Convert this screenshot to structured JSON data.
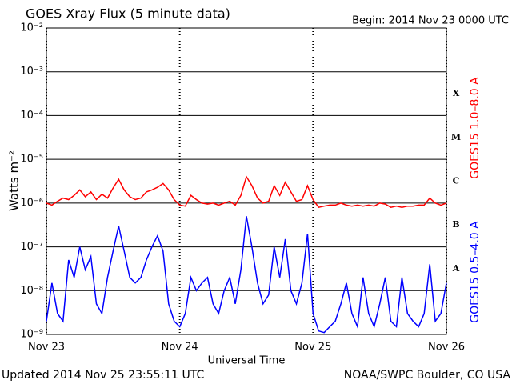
{
  "chart_data": {
    "type": "line",
    "title": "GOES Xray Flux (5 minute data)",
    "subtitle": "Begin:  2014 Nov 23 0000 UTC",
    "y_label": "Watts m⁻²",
    "x_label": "Universal Time",
    "footer_left": "Updated 2014 Nov 25 23:55:11 UTC",
    "footer_right": "NOAA/SWPC Boulder, CO USA",
    "flare_classes": [
      "X",
      "M",
      "C",
      "B",
      "A"
    ],
    "log_y": true,
    "grid": true,
    "xlim": [
      0,
      72
    ],
    "xticks": [
      {
        "value": 0,
        "label": "Nov 23"
      },
      {
        "value": 24,
        "label": "Nov 24"
      },
      {
        "value": 48,
        "label": "Nov 25"
      },
      {
        "value": 72,
        "label": "Nov 26"
      }
    ],
    "ylim": [
      1e-09,
      0.01
    ],
    "yticks": [
      {
        "value": 1e-09,
        "label": "10⁻⁹"
      },
      {
        "value": 1e-08,
        "label": "10⁻⁸"
      },
      {
        "value": 1e-07,
        "label": "10⁻⁷"
      },
      {
        "value": 1e-06,
        "label": "10⁻⁶"
      },
      {
        "value": 1e-05,
        "label": "10⁻⁵"
      },
      {
        "value": 0.0001,
        "label": "10⁻⁴"
      },
      {
        "value": 0.001,
        "label": "10⁻³"
      },
      {
        "value": 0.01,
        "label": "10⁻²"
      }
    ],
    "x": [
      0,
      1,
      2,
      3,
      4,
      5,
      6,
      7,
      8,
      9,
      10,
      11,
      12,
      13,
      14,
      15,
      16,
      17,
      18,
      19,
      20,
      21,
      22,
      23,
      24,
      25,
      26,
      27,
      28,
      29,
      30,
      31,
      32,
      33,
      34,
      35,
      36,
      37,
      38,
      39,
      40,
      41,
      42,
      43,
      44,
      45,
      46,
      47,
      48,
      49,
      50,
      51,
      52,
      53,
      54,
      55,
      56,
      57,
      58,
      59,
      60,
      61,
      62,
      63,
      64,
      65,
      66,
      67,
      68,
      69,
      70,
      71,
      72
    ],
    "series": [
      {
        "name": "GOES15 1.0–8.0 A",
        "color": "#ff0000",
        "values": [
          1e-06,
          9e-07,
          1.1e-06,
          1.3e-06,
          1.2e-06,
          1.5e-06,
          2e-06,
          1.4e-06,
          1.8e-06,
          1.2e-06,
          1.6e-06,
          1.3e-06,
          2.2e-06,
          3.5e-06,
          2e-06,
          1.4e-06,
          1.2e-06,
          1.3e-06,
          1.8e-06,
          2e-06,
          2.3e-06,
          2.8e-06,
          2e-06,
          1.2e-06,
          9e-07,
          8.5e-07,
          1.5e-06,
          1.2e-06,
          1e-06,
          9.5e-07,
          1e-06,
          9e-07,
          1e-06,
          1.1e-06,
          9e-07,
          1.5e-06,
          4e-06,
          2.5e-06,
          1.3e-06,
          1e-06,
          1.1e-06,
          2.5e-06,
          1.5e-06,
          3e-06,
          1.8e-06,
          1.1e-06,
          1.2e-06,
          2.5e-06,
          1.2e-06,
          8e-07,
          8.5e-07,
          9e-07,
          9e-07,
          1e-06,
          9e-07,
          8.5e-07,
          9e-07,
          8.5e-07,
          9e-07,
          8.5e-07,
          1e-06,
          9.5e-07,
          8e-07,
          8.5e-07,
          8e-07,
          8.5e-07,
          8.5e-07,
          9e-07,
          9e-07,
          1.3e-06,
          1e-06,
          9e-07,
          1e-06
        ]
      },
      {
        "name": "GOES15 0.5–4.0 A",
        "color": "#0000ff",
        "values": [
          2e-09,
          1.5e-08,
          3e-09,
          2e-09,
          5e-08,
          2e-08,
          1e-07,
          3e-08,
          6e-08,
          5e-09,
          3e-09,
          2e-08,
          8e-08,
          3e-07,
          8e-08,
          2e-08,
          1.5e-08,
          2e-08,
          5e-08,
          1e-07,
          1.8e-07,
          8e-08,
          5e-09,
          2e-09,
          1.5e-09,
          3e-09,
          2e-08,
          1e-08,
          1.5e-08,
          2e-08,
          5e-09,
          3e-09,
          1e-08,
          2e-08,
          5e-09,
          3e-08,
          5e-07,
          1e-07,
          1.5e-08,
          5e-09,
          8e-09,
          1e-07,
          2e-08,
          1.5e-07,
          1e-08,
          5e-09,
          1.5e-08,
          2e-07,
          3e-09,
          1.2e-09,
          1.1e-09,
          1.5e-09,
          2e-09,
          5e-09,
          1.5e-08,
          3e-09,
          1.5e-09,
          2e-08,
          3e-09,
          1.5e-09,
          5e-09,
          2e-08,
          2e-09,
          1.5e-09,
          2e-08,
          3e-09,
          2e-09,
          1.5e-09,
          3e-09,
          4e-08,
          2e-09,
          3e-09,
          1.5e-08
        ]
      }
    ]
  }
}
